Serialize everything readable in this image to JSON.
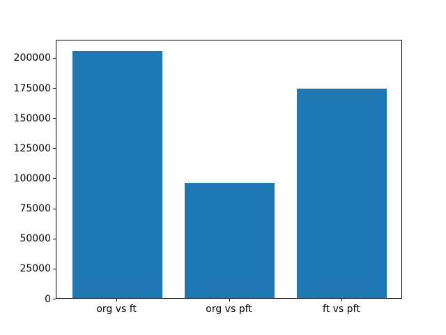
{
  "chart_data": {
    "type": "bar",
    "title": "",
    "categories": [
      "org vs ft",
      "org vs pft",
      "ft vs pft"
    ],
    "values": [
      205000,
      95500,
      174000
    ],
    "xlabel": "",
    "ylabel": "",
    "ylim": [
      0,
      215000
    ],
    "yticks": [
      0,
      25000,
      50000,
      75000,
      100000,
      125000,
      150000,
      175000,
      200000
    ],
    "bar_color": "#1f77b4",
    "axis_color": "#000000",
    "background_color": "#ffffff",
    "grid": false,
    "legend": null,
    "bar_width_fraction": 0.8,
    "x_positions": [
      0,
      1,
      2
    ],
    "xlim": [
      -0.54,
      2.54
    ]
  }
}
